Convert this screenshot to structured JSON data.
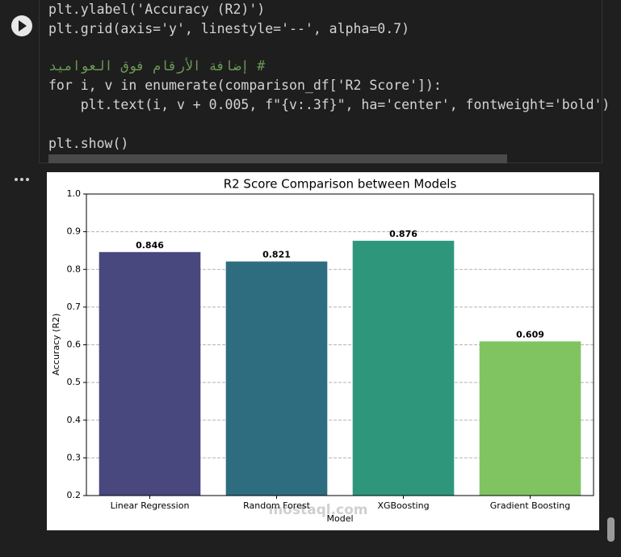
{
  "code_cell": {
    "lines": [
      "plt.ylabel('Accuracy (R2)')",
      "plt.grid(axis='y', linestyle='--', alpha=0.7)",
      "# إضافة الأرقام فوق العواميد",
      "for i, v in enumerate(comparison_df['R2 Score']):",
      "    plt.text(i, v + 0.005, f\"{v:.3f}\", ha='center', fontweight='bold')",
      "plt.show()"
    ]
  },
  "chart_data": {
    "type": "bar",
    "title": "R2 Score Comparison between Models",
    "x_label": "Model",
    "y_label": "Accuracy (R2)",
    "categories": [
      "Linear Regression",
      "Random Forest",
      "XGBoosting",
      "Gradient Boosting"
    ],
    "values": [
      0.846,
      0.821,
      0.876,
      0.609
    ],
    "colors": [
      "#48477e",
      "#2e6d80",
      "#2e977b",
      "#80c462"
    ],
    "ylim": [
      0.2,
      1.0
    ],
    "yticks": [
      0.2,
      0.3,
      0.4,
      0.5,
      0.6,
      0.7,
      0.8,
      0.9,
      {
        "value": 1.0,
        "label": "1.0"
      }
    ],
    "grid": true
  },
  "watermark": "mostaql.com"
}
